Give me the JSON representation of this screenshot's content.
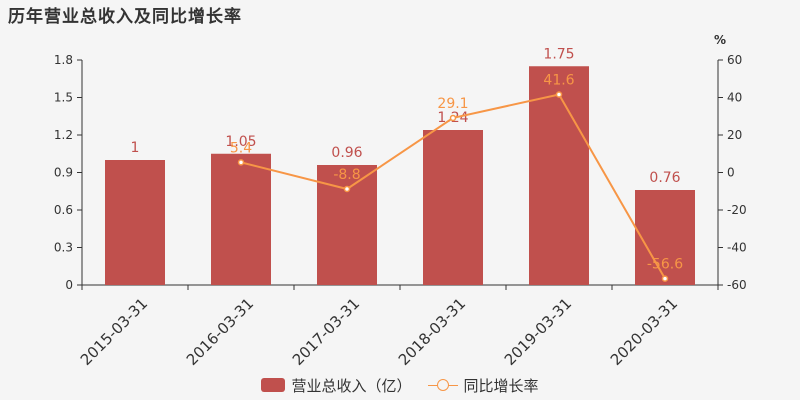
{
  "chart_title": "历年营业总收入及同比增长率",
  "colors": {
    "bar": "#c0504d",
    "line": "#f79646",
    "axis": "#333333",
    "tick": "#333333",
    "grid": "#dddddd",
    "value_label_bar": "#c0504d",
    "value_label_line": "#f79646"
  },
  "chart_data": {
    "type": "bar+line",
    "categories": [
      "2015-03-31",
      "2016-03-31",
      "2017-03-31",
      "2018-03-31",
      "2019-03-31",
      "2020-03-31"
    ],
    "series": [
      {
        "name": "营业总收入（亿）",
        "type": "bar",
        "axis": "left",
        "values": [
          1,
          1.05,
          0.96,
          1.24,
          1.75,
          0.76
        ],
        "labels": [
          "1",
          "1.05",
          "0.96",
          "1.24",
          "1.75",
          "0.76"
        ]
      },
      {
        "name": "同比增长率",
        "type": "line",
        "axis": "right",
        "values": [
          null,
          5.4,
          -8.8,
          29.1,
          41.6,
          -56.6
        ],
        "labels": [
          "",
          "5.4",
          "-8.8",
          "29.1",
          "41.6",
          "-56.6"
        ]
      }
    ],
    "y_left": {
      "range": [
        0,
        1.8
      ],
      "ticks": [
        0,
        0.3,
        0.6,
        0.9,
        1.2,
        1.5,
        1.8
      ],
      "tick_labels": [
        "0",
        "0.3",
        "0.6",
        "0.9",
        "1.2",
        "1.5",
        "1.8"
      ]
    },
    "y_right": {
      "label": "%",
      "range": [
        -60,
        60
      ],
      "ticks": [
        -60,
        -40,
        -20,
        0,
        20,
        40,
        60
      ],
      "tick_labels": [
        "-60",
        "-40",
        "-20",
        "0",
        "20",
        "40",
        "60"
      ]
    },
    "x_label_rotation": "45",
    "grid": false,
    "legend_position": "bottom-center"
  }
}
